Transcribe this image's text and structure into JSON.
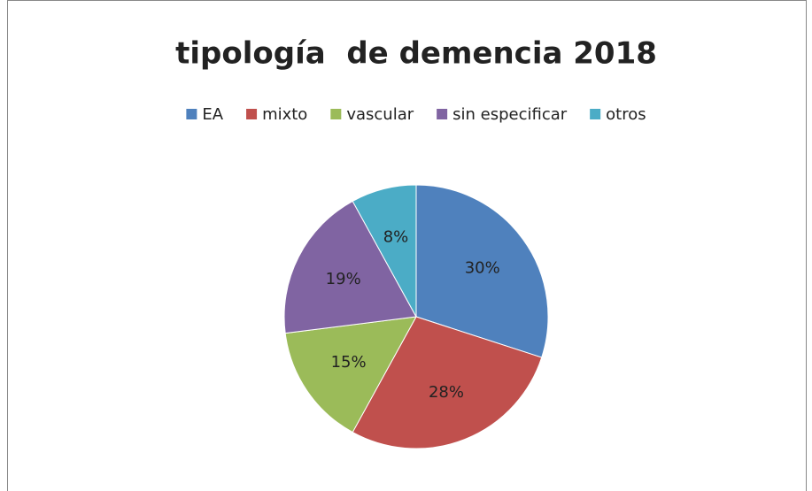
{
  "chart_data": {
    "type": "pie",
    "title": "tipología  de demencia 2018",
    "categories": [
      "EA",
      "mixto",
      "vascular",
      "sin especificar",
      "otros"
    ],
    "values": [
      30,
      28,
      15,
      19,
      8
    ],
    "value_labels": [
      "30%",
      "28%",
      "15%",
      "19%",
      "8%"
    ],
    "colors": [
      "#4f81bd",
      "#c0504d",
      "#9bbb59",
      "#8064a2",
      "#4bacc6"
    ],
    "legend": "top"
  }
}
